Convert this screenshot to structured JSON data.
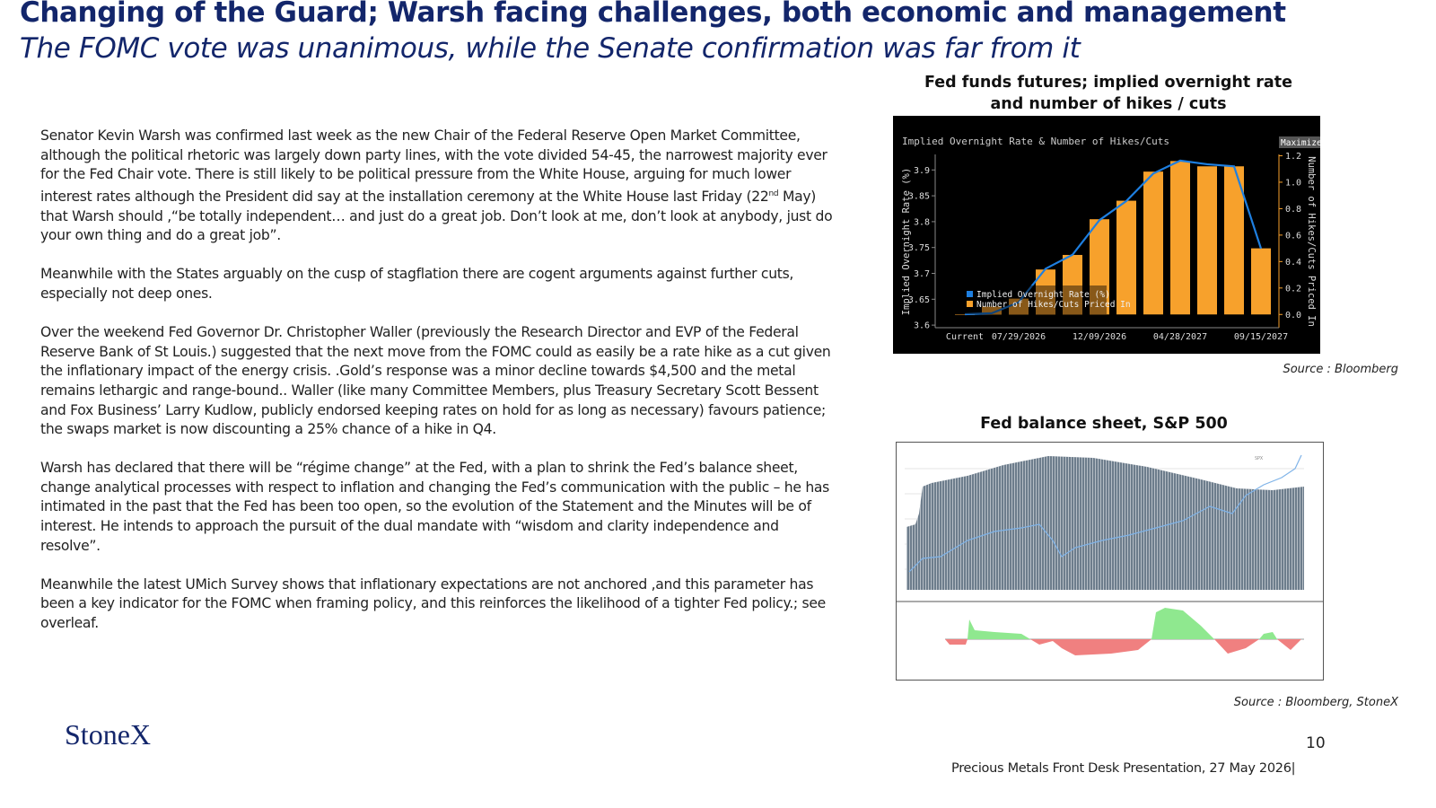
{
  "header": {
    "title": "Changing of the Guard;  Warsh facing challenges, both economic and management",
    "subtitle": "The FOMC vote was unanimous,  while the Senate confirmation was far from it"
  },
  "body": {
    "paragraphs": [
      [
        "Senator Kevin Warsh was confirmed last week as the new Chair of the Federal Reserve Open Market Committee, although the political rhetoric was largely down party lines, with the vote divided 54-45, the narrowest majority  ever for the Fed Chair vote.    There is still likely to be political pressure from the White House, arguing for much lower interest rates although the President did say at the installation ceremony at the White House last Friday (22",
        "nd",
        " May) that Warsh should ,“be totally independent… and just do a great job.  Don’t look at me, don’t look at anybody, just do your own thing and do a great job”."
      ],
      "Meanwhile with the States arguably on the  cusp of stagflation there are cogent arguments against further cuts, especially not deep ones.",
      "Over the weekend Fed Governor Dr.  Christopher Waller (previously the Research Director and EVP of the Federal Reserve Bank of St Louis.) suggested that the next move from the FOMC could as easily be a rate hike as a cut given the inflationary impact of the energy crisis.  .Gold’s response was a minor decline towards $4,500 and the metal remains lethargic and range-bound..   Waller (like many Committee Members, plus Treasury Secretary Scott Bessent and Fox Business’ Larry Kudlow, publicly endorsed keeping rates on hold for as long as necessary) favours patience; the swaps market is now discounting a 25% chance of a hike in Q4.",
      "Warsh has declared that there will be “régime change” at the Fed, with a plan to shrink the Fed’s balance sheet, change analytical processes with respect to inflation and changing the Fed’s communication with the public – he has intimated in the past that the Fed has been too open, so the evolution of the Statement and the Minutes will be of interest.   He intends to approach the pursuit of the dual mandate with “wisdom and clarity independence and resolve”.",
      "Meanwhile the latest UMich Survey shows that inflationary expectations are not anchored ,and this parameter has been a key indicator for the FOMC when framing policy, and this reinforces the likelihood of a tighter Fed policy.; see overleaf."
    ]
  },
  "figure1": {
    "caption": "Fed funds futures; implied overnight rate and number of hikes / cuts",
    "source": "Source : Bloomberg",
    "chart_data": {
      "type": "bar",
      "title": "Implied Overnight Rate & Number of Hikes/Cuts",
      "button": "Maximize",
      "ylabel": "Implied Overnight Rate (%)",
      "y2label": "Number of Hikes/Cuts Priced In",
      "categories": [
        "Current",
        null,
        "07/29/2026",
        null,
        null,
        "12/09/2026",
        null,
        null,
        "04/28/2027",
        null,
        null,
        "09/15/2027"
      ],
      "series": [
        {
          "name": "Implied Overnight Rate (%)",
          "type": "line",
          "color": "#1e7fe0",
          "values": [
            3.621,
            3.623,
            3.644,
            3.709,
            3.736,
            3.803,
            3.84,
            3.893,
            3.918,
            3.911,
            3.907,
            3.748
          ]
        },
        {
          "name": "Number of Hikes/Cuts Priced In",
          "type": "bar",
          "axis": "y2",
          "color": "#f7a12c",
          "values": [
            0.0,
            0.06,
            0.12,
            0.34,
            0.45,
            0.72,
            0.86,
            1.08,
            1.16,
            1.12,
            1.12,
            0.5
          ]
        }
      ],
      "ylim": [
        3.595,
        3.93
      ],
      "yticks": [
        3.6,
        3.65,
        3.7,
        3.75,
        3.8,
        3.85,
        3.9
      ],
      "y2lim": [
        -0.1,
        1.21
      ],
      "y2ticks": [
        {
          "value": 0,
          "label": "0.0"
        },
        0.2,
        0.4,
        0.6,
        0.8,
        {
          "value": 1,
          "label": "1.0"
        },
        1.2
      ]
    }
  },
  "figure2": {
    "caption": "Fed balance sheet, S&P 500",
    "label": "SPX",
    "source": "Source : Bloomberg, StoneX"
  },
  "footer": {
    "logo": "StoneX",
    "page": "10",
    "presentation": "Precious Metals Front Desk Presentation, 27 May 2026|"
  }
}
